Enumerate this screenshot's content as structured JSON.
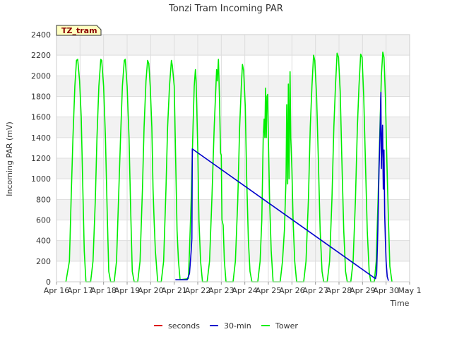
{
  "chart_data": {
    "type": "line",
    "title": "Tonzi Tram Incoming PAR",
    "xlabel": "Time",
    "ylabel": "Incoming PAR (mV)",
    "site_label": "TZ_tram",
    "xlim": [
      16,
      31
    ],
    "ylim": [
      0,
      2400
    ],
    "grid": true,
    "legend_position": "bottom-center",
    "x_ticks": [
      {
        "value": 16,
        "label": "Apr 16"
      },
      {
        "value": 17,
        "label": "Apr 17"
      },
      {
        "value": 18,
        "label": "Apr 18"
      },
      {
        "value": 19,
        "label": "Apr 19"
      },
      {
        "value": 20,
        "label": "Apr 20"
      },
      {
        "value": 21,
        "label": "Apr 21"
      },
      {
        "value": 22,
        "label": "Apr 22"
      },
      {
        "value": 23,
        "label": "Apr 23"
      },
      {
        "value": 24,
        "label": "Apr 24"
      },
      {
        "value": 25,
        "label": "Apr 25"
      },
      {
        "value": 26,
        "label": "Apr 26"
      },
      {
        "value": 27,
        "label": "Apr 27"
      },
      {
        "value": 28,
        "label": "Apr 28"
      },
      {
        "value": 29,
        "label": "Apr 29"
      },
      {
        "value": 30,
        "label": "Apr 30"
      },
      {
        "value": 31,
        "label": "May 1"
      }
    ],
    "y_ticks": [
      0,
      200,
      400,
      600,
      800,
      1000,
      1200,
      1400,
      1600,
      1800,
      2000,
      2200,
      2400
    ],
    "series": [
      {
        "name": "seconds",
        "color": "#dd0000",
        "points": []
      },
      {
        "name": "30-min",
        "color": "#0000cc",
        "points": [
          [
            21.05,
            20
          ],
          [
            21.55,
            20
          ],
          [
            21.65,
            80
          ],
          [
            21.72,
            300
          ],
          [
            21.75,
            420
          ],
          [
            21.77,
            1290
          ],
          [
            29.55,
            30
          ],
          [
            29.6,
            80
          ],
          [
            29.65,
            500
          ],
          [
            29.7,
            1100
          ],
          [
            29.74,
            1400
          ],
          [
            29.78,
            1840
          ],
          [
            29.8,
            1100
          ],
          [
            29.82,
            1330
          ],
          [
            29.85,
            1520
          ],
          [
            29.88,
            900
          ],
          [
            29.91,
            1280
          ],
          [
            29.94,
            650
          ],
          [
            29.97,
            400
          ],
          [
            30.0,
            200
          ],
          [
            30.05,
            50
          ],
          [
            30.1,
            10
          ]
        ]
      },
      {
        "name": "Tower",
        "color": "#00ee00",
        "points": [
          [
            16.4,
            0
          ],
          [
            16.55,
            200
          ],
          [
            16.62,
            800
          ],
          [
            16.7,
            1400
          ],
          [
            16.78,
            1900
          ],
          [
            16.85,
            2150
          ],
          [
            16.9,
            2160
          ],
          [
            16.98,
            1950
          ],
          [
            17.05,
            1600
          ],
          [
            17.12,
            900
          ],
          [
            17.18,
            300
          ],
          [
            17.25,
            0
          ],
          [
            17.45,
            0
          ],
          [
            17.55,
            200
          ],
          [
            17.65,
            800
          ],
          [
            17.72,
            1400
          ],
          [
            17.8,
            1900
          ],
          [
            17.88,
            2160
          ],
          [
            17.92,
            2150
          ],
          [
            18.0,
            1900
          ],
          [
            18.08,
            1400
          ],
          [
            18.15,
            700
          ],
          [
            18.22,
            100
          ],
          [
            18.3,
            0
          ],
          [
            18.45,
            0
          ],
          [
            18.55,
            200
          ],
          [
            18.65,
            900
          ],
          [
            18.72,
            1400
          ],
          [
            18.8,
            1900
          ],
          [
            18.88,
            2150
          ],
          [
            18.92,
            2160
          ],
          [
            19.0,
            1900
          ],
          [
            19.08,
            1400
          ],
          [
            19.15,
            700
          ],
          [
            19.22,
            100
          ],
          [
            19.3,
            0
          ],
          [
            19.45,
            0
          ],
          [
            19.55,
            200
          ],
          [
            19.65,
            900
          ],
          [
            19.72,
            1500
          ],
          [
            19.8,
            1950
          ],
          [
            19.87,
            2150
          ],
          [
            19.92,
            2120
          ],
          [
            19.98,
            1900
          ],
          [
            20.05,
            1500
          ],
          [
            20.1,
            900
          ],
          [
            20.15,
            580
          ],
          [
            20.2,
            300
          ],
          [
            20.3,
            0
          ],
          [
            20.45,
            0
          ],
          [
            20.55,
            200
          ],
          [
            20.65,
            900
          ],
          [
            20.72,
            1500
          ],
          [
            20.8,
            1900
          ],
          [
            20.88,
            2150
          ],
          [
            20.92,
            2100
          ],
          [
            21.0,
            1900
          ],
          [
            21.06,
            1200
          ],
          [
            21.12,
            500
          ],
          [
            21.18,
            200
          ],
          [
            21.25,
            20
          ],
          [
            21.6,
            30
          ],
          [
            21.65,
            300
          ],
          [
            21.72,
            800
          ],
          [
            21.8,
            1500
          ],
          [
            21.85,
            1900
          ],
          [
            21.9,
            2060
          ],
          [
            21.93,
            1950
          ],
          [
            22.0,
            1300
          ],
          [
            22.05,
            600
          ],
          [
            22.12,
            200
          ],
          [
            22.2,
            0
          ],
          [
            22.4,
            0
          ],
          [
            22.5,
            200
          ],
          [
            22.6,
            800
          ],
          [
            22.7,
            1500
          ],
          [
            22.8,
            2060
          ],
          [
            22.83,
            1950
          ],
          [
            22.88,
            2160
          ],
          [
            22.92,
            1800
          ],
          [
            22.97,
            1250
          ],
          [
            23.0,
            1230
          ],
          [
            23.03,
            600
          ],
          [
            23.08,
            550
          ],
          [
            23.13,
            200
          ],
          [
            23.2,
            0
          ],
          [
            23.5,
            0
          ],
          [
            23.6,
            200
          ],
          [
            23.7,
            800
          ],
          [
            23.78,
            1500
          ],
          [
            23.85,
            1900
          ],
          [
            23.9,
            2110
          ],
          [
            23.95,
            2050
          ],
          [
            24.02,
            1700
          ],
          [
            24.08,
            1000
          ],
          [
            24.15,
            400
          ],
          [
            24.22,
            100
          ],
          [
            24.3,
            0
          ],
          [
            24.55,
            0
          ],
          [
            24.65,
            200
          ],
          [
            24.72,
            600
          ],
          [
            24.78,
            1400
          ],
          [
            24.82,
            1580
          ],
          [
            24.85,
            1400
          ],
          [
            24.88,
            1880
          ],
          [
            24.91,
            1400
          ],
          [
            24.94,
            1800
          ],
          [
            24.97,
            1820
          ],
          [
            25.0,
            1400
          ],
          [
            25.05,
            800
          ],
          [
            25.12,
            300
          ],
          [
            25.2,
            0
          ],
          [
            25.5,
            0
          ],
          [
            25.6,
            200
          ],
          [
            25.68,
            500
          ],
          [
            25.75,
            1000
          ],
          [
            25.78,
            1720
          ],
          [
            25.82,
            950
          ],
          [
            25.85,
            1920
          ],
          [
            25.88,
            1000
          ],
          [
            25.92,
            2040
          ],
          [
            25.95,
            1400
          ],
          [
            26.0,
            1100
          ],
          [
            26.05,
            600
          ],
          [
            26.12,
            200
          ],
          [
            26.2,
            0
          ],
          [
            26.5,
            0
          ],
          [
            26.6,
            200
          ],
          [
            26.7,
            800
          ],
          [
            26.78,
            1500
          ],
          [
            26.85,
            1900
          ],
          [
            26.92,
            2200
          ],
          [
            26.97,
            2150
          ],
          [
            27.05,
            1800
          ],
          [
            27.12,
            1200
          ],
          [
            27.2,
            500
          ],
          [
            27.28,
            100
          ],
          [
            27.35,
            0
          ],
          [
            27.5,
            0
          ],
          [
            27.6,
            200
          ],
          [
            27.7,
            800
          ],
          [
            27.78,
            1500
          ],
          [
            27.85,
            1900
          ],
          [
            27.92,
            2220
          ],
          [
            27.98,
            2180
          ],
          [
            28.05,
            1850
          ],
          [
            28.12,
            1200
          ],
          [
            28.2,
            500
          ],
          [
            28.28,
            100
          ],
          [
            28.35,
            0
          ],
          [
            28.5,
            0
          ],
          [
            28.6,
            200
          ],
          [
            28.7,
            800
          ],
          [
            28.78,
            1500
          ],
          [
            28.85,
            1900
          ],
          [
            28.92,
            2210
          ],
          [
            28.98,
            2180
          ],
          [
            29.05,
            1800
          ],
          [
            29.12,
            1200
          ],
          [
            29.2,
            500
          ],
          [
            29.28,
            100
          ],
          [
            29.35,
            0
          ],
          [
            29.5,
            0
          ],
          [
            29.58,
            200
          ],
          [
            29.66,
            800
          ],
          [
            29.74,
            1500
          ],
          [
            29.8,
            2000
          ],
          [
            29.86,
            2230
          ],
          [
            29.91,
            2180
          ],
          [
            29.97,
            1800
          ],
          [
            30.03,
            1200
          ],
          [
            30.1,
            600
          ],
          [
            30.16,
            150
          ],
          [
            30.25,
            0
          ]
        ]
      }
    ],
    "connector": {
      "series": "30-min",
      "from": [
        21.77,
        1290
      ],
      "to": [
        29.55,
        30
      ]
    }
  }
}
